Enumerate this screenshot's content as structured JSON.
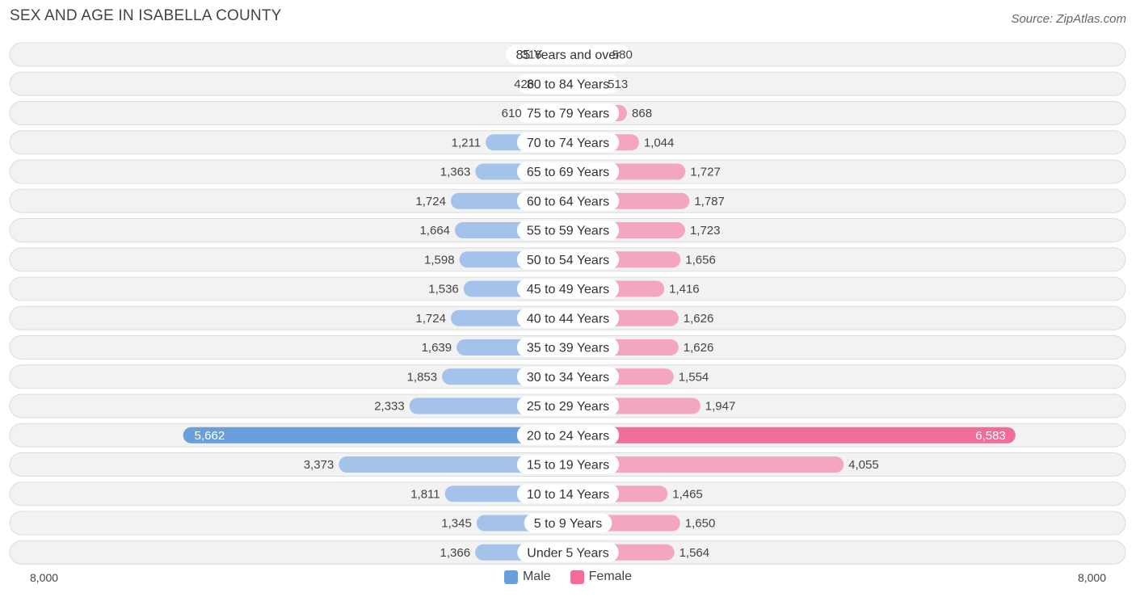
{
  "title": "SEX AND AGE IN ISABELLA COUNTY",
  "source": "Source: ZipAtlas.com",
  "colors": {
    "male": "#a4c3ea",
    "male_strong": "#6a9fdc",
    "female": "#f4a5c0",
    "female_strong": "#ef6d98",
    "row_bg": "#f2f2f2",
    "row_border": "#dcdcdc"
  },
  "chart_data": {
    "type": "bar",
    "orientation": "horizontal-diverging",
    "categories": [
      "85 Years and over",
      "80 to 84 Years",
      "75 to 79 Years",
      "70 to 74 Years",
      "65 to 69 Years",
      "60 to 64 Years",
      "55 to 59 Years",
      "50 to 54 Years",
      "45 to 49 Years",
      "40 to 44 Years",
      "35 to 39 Years",
      "30 to 34 Years",
      "25 to 29 Years",
      "20 to 24 Years",
      "15 to 19 Years",
      "10 to 14 Years",
      "5 to 9 Years",
      "Under 5 Years"
    ],
    "series": [
      {
        "name": "Male",
        "values": [
          316,
          426,
          610,
          1211,
          1363,
          1724,
          1664,
          1598,
          1536,
          1724,
          1639,
          1853,
          2333,
          5662,
          3373,
          1811,
          1345,
          1366
        ]
      },
      {
        "name": "Female",
        "values": [
          580,
          513,
          868,
          1044,
          1727,
          1787,
          1723,
          1656,
          1416,
          1626,
          1626,
          1554,
          1947,
          6583,
          4055,
          1465,
          1650,
          1564
        ]
      }
    ],
    "xlim": [
      -8000,
      8000
    ],
    "axis_labels": {
      "left": "8,000",
      "right": "8,000"
    },
    "legend": {
      "position": "bottom-center",
      "items": [
        "Male",
        "Female"
      ]
    }
  }
}
